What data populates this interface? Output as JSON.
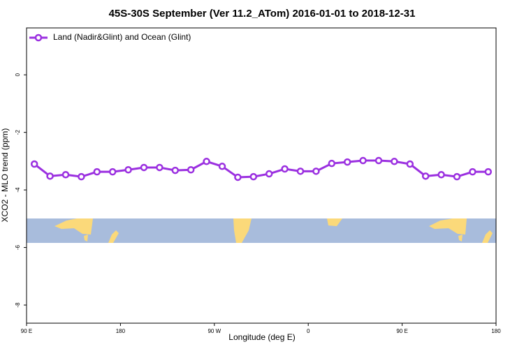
{
  "chart_data": {
    "type": "line",
    "title": "45S-30S September (Ver 11.2_ATom)   2016-01-01 to 2018-12-31",
    "x_label": "Longitude (deg E)",
    "y_label": "XCO2 - MLO trend (ppm)",
    "x": [
      97.5,
      112.5,
      127.5,
      142.5,
      157.5,
      172.5,
      187.5,
      202.5,
      217.5,
      232.5,
      247.5,
      262.5,
      277.5,
      292.5,
      307.5,
      322.5,
      337.5,
      352.5,
      367.5,
      382.5,
      397.5,
      412.5,
      427.5,
      442.5,
      457.5,
      472.5,
      487.5,
      502.5,
      517.5,
      532.5
    ],
    "series": [
      {
        "name": "Land (Nadir&Glint) and Ocean (Glint)",
        "color": "#9b30e0",
        "values": [
          -3.1,
          -3.52,
          -3.47,
          -3.54,
          -3.37,
          -3.37,
          -3.3,
          -3.22,
          -3.22,
          -3.32,
          -3.3,
          -3.01,
          -3.18,
          -3.56,
          -3.54,
          -3.44,
          -3.27,
          -3.35,
          -3.35,
          -3.08,
          -3.03,
          -2.98,
          -2.98,
          -3.01,
          -3.1,
          -3.52,
          -3.47,
          -3.54,
          -3.37,
          -3.37
        ]
      }
    ],
    "xlim": [
      90,
      540
    ],
    "xticks": [
      {
        "value": 90,
        "label": "90 E"
      },
      {
        "value": 180,
        "label": "180"
      },
      {
        "value": 270,
        "label": "90 W"
      },
      {
        "value": 360,
        "label": "0"
      },
      {
        "value": 450,
        "label": "90 E"
      },
      {
        "value": 540,
        "label": "180"
      }
    ],
    "ylim": [
      -8.63,
      1.63
    ],
    "yticks": [
      0,
      -2,
      -4,
      -6,
      -8
    ],
    "legend": "top-left"
  }
}
